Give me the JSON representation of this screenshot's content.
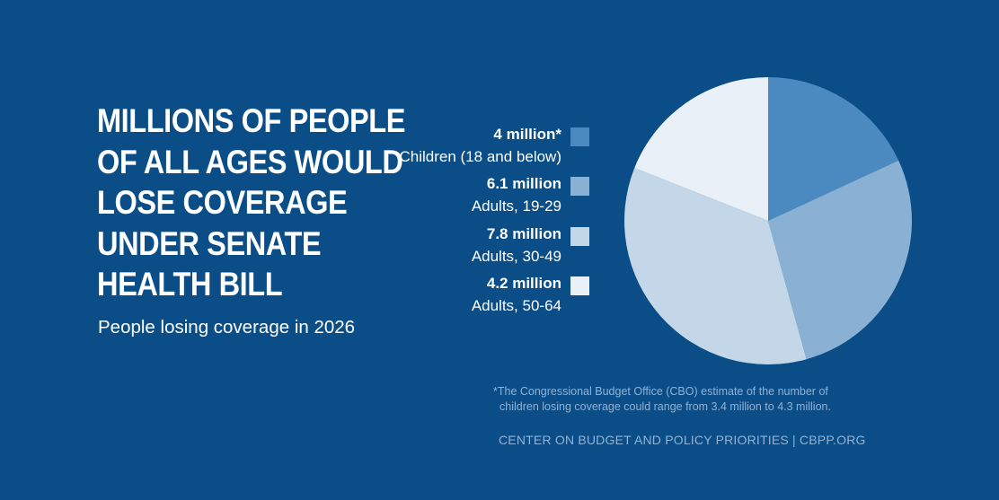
{
  "title_lines": [
    "MILLIONS OF PEOPLE",
    "OF ALL AGES WOULD",
    "LOSE COVERAGE",
    "UNDER SENATE",
    "HEALTH BILL"
  ],
  "subtitle": "People losing coverage in 2026",
  "chart_data": {
    "type": "pie",
    "title": "Millions of people of all ages would lose coverage under Senate health bill",
    "subtitle": "People losing coverage in 2026",
    "slices": [
      {
        "label": "Children (18 and below)",
        "value": 4.0,
        "value_label": "4 million*",
        "color": "#4a8ac0"
      },
      {
        "label": "Adults, 19-29",
        "value": 6.1,
        "value_label": "6.1 million",
        "color": "#8ab0d3"
      },
      {
        "label": "Adults, 30-49",
        "value": 7.8,
        "value_label": "7.8 million",
        "color": "#c3d7e8"
      },
      {
        "label": "Adults, 50-64",
        "value": 4.2,
        "value_label": "4.2 million",
        "color": "#e9f0f8"
      }
    ],
    "start": "12 o'clock, clockwise",
    "legend_position": "left"
  },
  "footnote": {
    "line1": "*The Congressional Budget Office (CBO) estimate of the number of",
    "line2": "children losing coverage could range from 3.4 million to 4.3 million."
  },
  "credit": "CENTER ON BUDGET AND POLICY PRIORITIES | CBPP.ORG",
  "colors": {
    "background": "#0b4d87",
    "text": "#ffffff",
    "muted_text": "#8fb2d6"
  }
}
